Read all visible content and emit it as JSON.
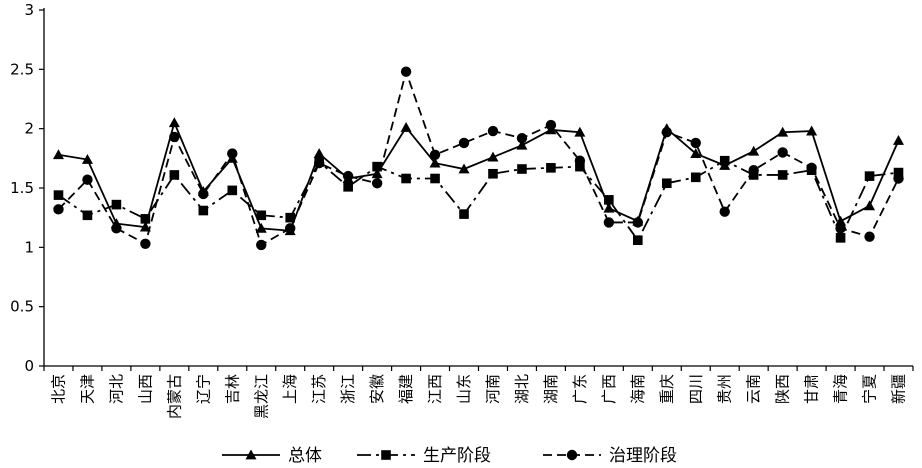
{
  "chart_data": {
    "type": "line",
    "categories": [
      "北京",
      "天津",
      "河北",
      "山西",
      "内蒙古",
      "辽宁",
      "吉林",
      "黑龙江",
      "上海",
      "江苏",
      "浙江",
      "安徽",
      "福建",
      "江西",
      "山东",
      "河南",
      "湖北",
      "湖南",
      "广东",
      "广西",
      "海南",
      "重庆",
      "四川",
      "贵州",
      "云南",
      "陕西",
      "甘肃",
      "青海",
      "宁夏",
      "新疆"
    ],
    "ylim": [
      0,
      3
    ],
    "yticks": [
      "0",
      "0.5",
      "1",
      "1.5",
      "2",
      "2.5",
      "3"
    ],
    "grid": false,
    "legend_position": "bottom",
    "series": [
      {
        "name": "总体",
        "marker": "triangle",
        "dash": "solid",
        "values": [
          1.78,
          1.74,
          1.2,
          1.17,
          2.05,
          1.47,
          1.75,
          1.16,
          1.14,
          1.79,
          1.58,
          1.62,
          2.01,
          1.71,
          1.66,
          1.76,
          1.86,
          1.99,
          1.97,
          1.33,
          1.22,
          2.0,
          1.79,
          1.69,
          1.81,
          1.97,
          1.98,
          1.22,
          1.35,
          1.9
        ]
      },
      {
        "name": "生产阶段",
        "marker": "square",
        "dash": "long-dash-dot",
        "values": [
          1.44,
          1.27,
          1.36,
          1.24,
          1.61,
          1.31,
          1.48,
          1.27,
          1.25,
          1.72,
          1.51,
          1.68,
          1.58,
          1.58,
          1.28,
          1.62,
          1.66,
          1.67,
          1.68,
          1.4,
          1.06,
          1.54,
          1.59,
          1.73,
          1.61,
          1.61,
          1.65,
          1.08,
          1.6,
          1.63
        ]
      },
      {
        "name": "治理阶段",
        "marker": "circle",
        "dash": "dashed",
        "values": [
          1.32,
          1.57,
          1.16,
          1.03,
          1.93,
          1.45,
          1.79,
          1.02,
          1.16,
          1.71,
          1.6,
          1.54,
          2.48,
          1.78,
          1.88,
          1.98,
          1.92,
          2.03,
          1.73,
          1.21,
          1.21,
          1.97,
          1.88,
          1.3,
          1.65,
          1.8,
          1.67,
          1.16,
          1.09,
          1.58
        ]
      }
    ]
  }
}
